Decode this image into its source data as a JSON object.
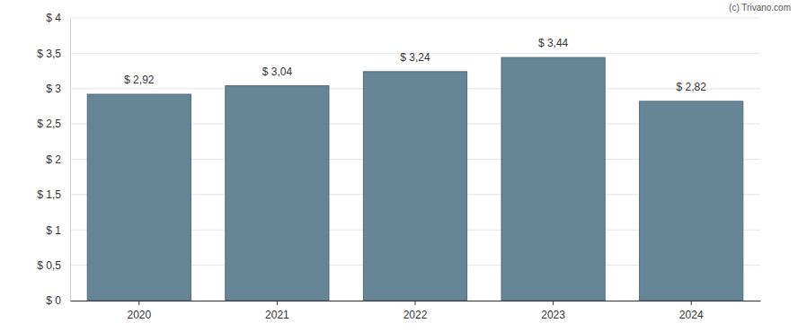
{
  "chart_data": {
    "type": "bar",
    "annotations": [
      "(c) Trivano.com"
    ],
    "categories": [
      "2020",
      "2021",
      "2022",
      "2023",
      "2024"
    ],
    "values": [
      2.92,
      3.04,
      3.24,
      3.44,
      2.82
    ],
    "value_labels": [
      "$ 2,92",
      "$ 3,04",
      "$ 3,24",
      "$ 3,44",
      "$ 2,82"
    ],
    "data_labels": true,
    "color": "#668596",
    "ylim": [
      0,
      4
    ],
    "yticks": [
      {
        "value": 0,
        "label": "$ 0"
      },
      {
        "value": 0.5,
        "label": "$ 0,5"
      },
      {
        "value": 1,
        "label": "$ 1"
      },
      {
        "value": 1.5,
        "label": "$ 1,5"
      },
      {
        "value": 2,
        "label": "$ 2"
      },
      {
        "value": 2.5,
        "label": "$ 2,5"
      },
      {
        "value": 3,
        "label": "$ 3"
      },
      {
        "value": 3.5,
        "label": "$ 3,5"
      },
      {
        "value": 4,
        "label": "$ 4"
      }
    ],
    "grid": true
  }
}
